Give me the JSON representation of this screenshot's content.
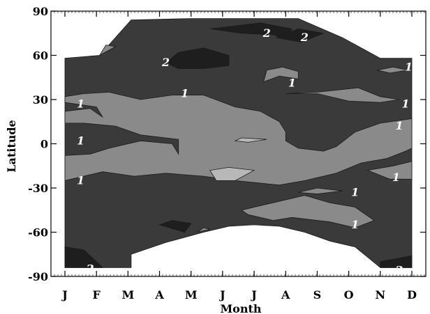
{
  "chart_data": {
    "type": "contour",
    "xlabel": "Month",
    "ylabel": "Latitude",
    "x_ticks": [
      "J",
      "F",
      "M",
      "A",
      "M",
      "J",
      "J",
      "A",
      "S",
      "O",
      "N",
      "D"
    ],
    "y_ticks": [
      90,
      60,
      30,
      0,
      -30,
      -60,
      -90
    ],
    "xlim": [
      0,
      11
    ],
    "ylim": [
      -90,
      90
    ],
    "levels": [
      1,
      2
    ],
    "colors": {
      "below_1": "#8a8a8a",
      "level_1_to_2": "#3a3a3a",
      "above_2": "#1e1e1e",
      "light_patch": "#b8b8b8",
      "label": "#ffffff"
    },
    "regions": [
      {
        "level": "level_1_to_2",
        "points": [
          [
            0,
            58
          ],
          [
            1.1,
            60
          ],
          [
            2.1,
            84
          ],
          [
            4,
            85
          ],
          [
            7.4,
            85
          ],
          [
            8.8,
            72
          ],
          [
            10,
            58
          ],
          [
            11,
            58
          ],
          [
            11,
            -84
          ],
          [
            10,
            -84
          ],
          [
            9.2,
            -70
          ],
          [
            8.4,
            -66
          ],
          [
            7.6,
            -60
          ],
          [
            6.8,
            -56
          ],
          [
            6,
            -55
          ],
          [
            5.2,
            -56
          ],
          [
            4.4,
            -60
          ],
          [
            3.2,
            -67
          ],
          [
            2.1,
            -75
          ],
          [
            2.1,
            -84
          ],
          [
            0,
            -84
          ]
        ]
      },
      {
        "level": "below_1",
        "points": [
          [
            0,
            32
          ],
          [
            0.6,
            34
          ],
          [
            1.4,
            35
          ],
          [
            2.4,
            30
          ],
          [
            3.4,
            33
          ],
          [
            4.4,
            33
          ],
          [
            5.4,
            25
          ],
          [
            6.2,
            22
          ],
          [
            6.8,
            15
          ],
          [
            7,
            8
          ],
          [
            7,
            2
          ],
          [
            7.4,
            -3
          ],
          [
            8.2,
            -5
          ],
          [
            8.6,
            -2
          ],
          [
            9.2,
            8
          ],
          [
            10,
            14
          ],
          [
            11,
            17
          ],
          [
            11,
            -3
          ],
          [
            10.8,
            -5
          ],
          [
            10.2,
            -10
          ],
          [
            9.4,
            -13
          ],
          [
            8.6,
            -20
          ],
          [
            7.6,
            -25
          ],
          [
            6.8,
            -28
          ],
          [
            5.4,
            -25
          ],
          [
            4.4,
            -22
          ],
          [
            3.2,
            -20
          ],
          [
            2.2,
            -22
          ],
          [
            1.2,
            -19
          ],
          [
            0.2,
            -24
          ],
          [
            0,
            -25
          ],
          [
            0,
            -8
          ],
          [
            0.8,
            -7
          ],
          [
            1.4,
            -3
          ],
          [
            2.4,
            2
          ],
          [
            3.4,
            0
          ],
          [
            3.6,
            -7
          ],
          [
            3.6,
            3
          ],
          [
            2.4,
            6
          ],
          [
            1.6,
            12
          ],
          [
            0.6,
            14
          ],
          [
            0,
            14
          ],
          [
            0,
            22
          ],
          [
            0.8,
            24
          ],
          [
            1.2,
            18
          ],
          [
            1,
            25
          ],
          [
            0,
            28
          ]
        ]
      },
      {
        "level": "below_1",
        "points": [
          [
            5.6,
            -45
          ],
          [
            6.6,
            -40
          ],
          [
            7.6,
            -35
          ],
          [
            8.4,
            -40
          ],
          [
            9.2,
            -43
          ],
          [
            9.8,
            -52
          ],
          [
            9.2,
            -57
          ],
          [
            8.4,
            -53
          ],
          [
            7.2,
            -50
          ],
          [
            6.6,
            -52
          ],
          [
            5.8,
            -48
          ]
        ]
      },
      {
        "level": "below_1",
        "points": [
          [
            7.4,
            -33
          ],
          [
            8.0,
            -30
          ],
          [
            8.8,
            -32
          ],
          [
            8.0,
            -34
          ]
        ]
      },
      {
        "level": "below_1",
        "points": [
          [
            9.6,
            -18
          ],
          [
            10.4,
            -15
          ],
          [
            11,
            -12
          ],
          [
            11,
            -24
          ],
          [
            10.3,
            -24
          ]
        ]
      },
      {
        "level": "below_1",
        "points": [
          [
            7,
            34
          ],
          [
            8,
            35
          ],
          [
            9.3,
            38
          ],
          [
            10,
            32
          ],
          [
            10.6,
            30
          ],
          [
            10,
            28
          ],
          [
            9,
            29
          ],
          [
            8,
            34
          ]
        ]
      },
      {
        "level": "below_1",
        "points": [
          [
            6.3,
            42
          ],
          [
            6.8,
            46
          ],
          [
            7.4,
            44
          ],
          [
            7.4,
            49
          ],
          [
            6.9,
            52
          ],
          [
            6.4,
            50
          ]
        ]
      },
      {
        "level": "below_1",
        "points": [
          [
            9.9,
            50
          ],
          [
            10.4,
            52
          ],
          [
            10.9,
            50
          ],
          [
            10.3,
            48
          ]
        ]
      },
      {
        "level": "below_1",
        "points": [
          [
            4.2,
            -60
          ],
          [
            4.4,
            -57
          ],
          [
            4.6,
            -58
          ]
        ]
      },
      {
        "level": "below_1",
        "points": [
          [
            1.1,
            60
          ],
          [
            1.3,
            67
          ],
          [
            1.6,
            66
          ]
        ]
      },
      {
        "level": "above_2",
        "points": [
          [
            3.2,
            55
          ],
          [
            3.6,
            62
          ],
          [
            4.4,
            65
          ],
          [
            5.2,
            60
          ],
          [
            5.2,
            53
          ],
          [
            4.4,
            51
          ],
          [
            3.6,
            51
          ]
        ]
      },
      {
        "level": "above_2",
        "points": [
          [
            4.6,
            78
          ],
          [
            6.2,
            82
          ],
          [
            7.2,
            78
          ],
          [
            7.0,
            71
          ],
          [
            6.6,
            74
          ],
          [
            5.6,
            75
          ]
        ]
      },
      {
        "level": "above_2",
        "points": [
          [
            6.7,
            72
          ],
          [
            7.4,
            78
          ],
          [
            8.2,
            75
          ],
          [
            7.5,
            69
          ]
        ]
      },
      {
        "level": "above_2",
        "points": [
          [
            3,
            -55
          ],
          [
            3.4,
            -52
          ],
          [
            4.0,
            -54
          ],
          [
            3.8,
            -60
          ]
        ]
      },
      {
        "level": "above_2",
        "points": [
          [
            0,
            -70
          ],
          [
            0.6,
            -72
          ],
          [
            1.2,
            -84
          ],
          [
            0,
            -84
          ]
        ]
      },
      {
        "level": "above_2",
        "points": [
          [
            10,
            -80
          ],
          [
            11,
            -76
          ],
          [
            11,
            -84
          ],
          [
            10,
            -84
          ]
        ]
      },
      {
        "level": "light_patch",
        "points": [
          [
            4.6,
            -18
          ],
          [
            5.2,
            -16
          ],
          [
            6,
            -18
          ],
          [
            5.4,
            -25
          ],
          [
            4.8,
            -25
          ]
        ]
      },
      {
        "level": "light_patch",
        "points": [
          [
            5.6,
            4
          ],
          [
            6.4,
            3
          ],
          [
            5.8,
            1
          ],
          [
            5.4,
            2
          ]
        ]
      }
    ],
    "contour_labels": [
      {
        "text": "2",
        "x": 6.4,
        "y": 75
      },
      {
        "text": "2",
        "x": 7.6,
        "y": 72
      },
      {
        "text": "2",
        "x": 3.2,
        "y": 55
      },
      {
        "text": "1",
        "x": 10.9,
        "y": 52
      },
      {
        "text": "1",
        "x": 7.2,
        "y": 41
      },
      {
        "text": "1",
        "x": 3.8,
        "y": 34
      },
      {
        "text": "1",
        "x": 0.5,
        "y": 27
      },
      {
        "text": "1",
        "x": 10.8,
        "y": 27
      },
      {
        "text": "1",
        "x": 10.6,
        "y": 12
      },
      {
        "text": "1",
        "x": 0.5,
        "y": 2
      },
      {
        "text": "1",
        "x": 0.5,
        "y": -25
      },
      {
        "text": "1",
        "x": 10.5,
        "y": -23
      },
      {
        "text": "1",
        "x": 9.2,
        "y": -33
      },
      {
        "text": "1",
        "x": 9.2,
        "y": -55
      },
      {
        "text": "2",
        "x": 0.8,
        "y": -85
      },
      {
        "text": "2",
        "x": 10.6,
        "y": -86
      }
    ]
  }
}
